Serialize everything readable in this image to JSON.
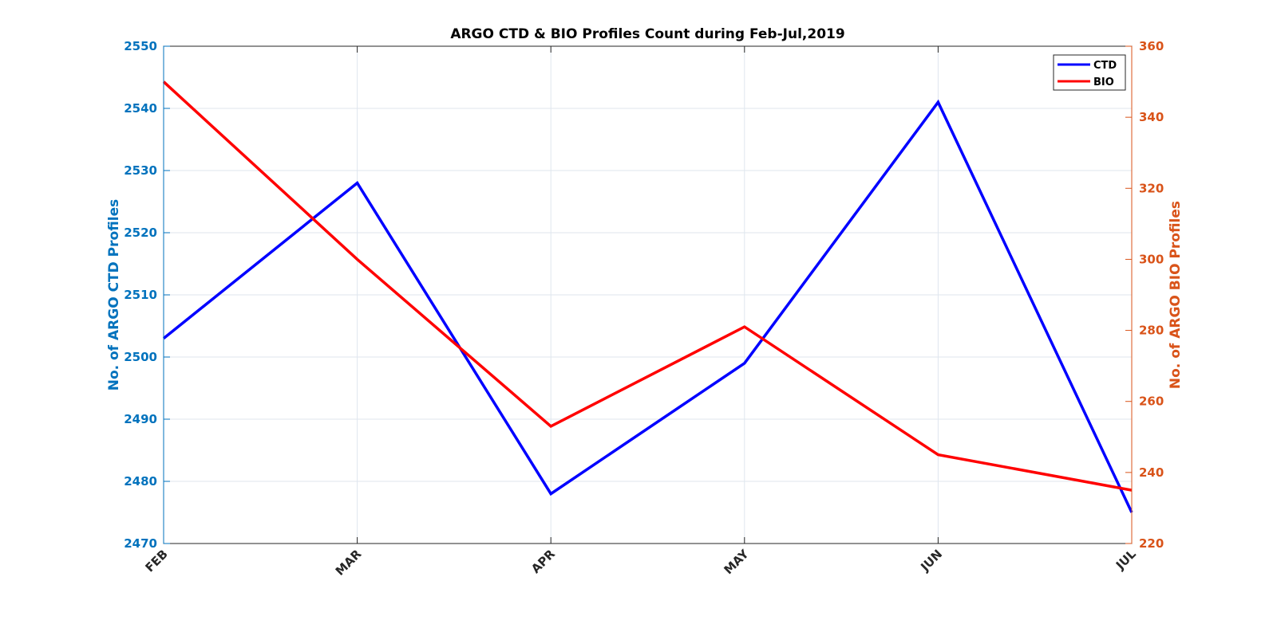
{
  "chart_data": {
    "type": "line",
    "title": "ARGO CTD & BIO Profiles Count during Feb-Jul,2019",
    "categories": [
      "FEB",
      "MAR",
      "APR",
      "MAY",
      "JUN",
      "JUL"
    ],
    "y_left": {
      "label": "No. of ARGO CTD Profiles",
      "range": [
        2470,
        2550
      ],
      "ticks": [
        "2470",
        "2480",
        "2490",
        "2500",
        "2510",
        "2520",
        "2530",
        "2540",
        "2550"
      ],
      "color": "#0072BD"
    },
    "y_right": {
      "label": "No. of ARGO BIO Profiles",
      "range": [
        220,
        360
      ],
      "ticks": [
        "220",
        "240",
        "260",
        "280",
        "300",
        "320",
        "340",
        "360"
      ],
      "color": "#D95319"
    },
    "series": [
      {
        "name": "CTD",
        "axis": "left",
        "color": "#0000FF",
        "values": [
          2503,
          2528,
          2478,
          2499,
          2541,
          2475
        ]
      },
      {
        "name": "BIO",
        "axis": "right",
        "color": "#FF0000",
        "values": [
          350,
          300,
          253,
          281,
          245,
          235
        ]
      }
    ],
    "grid": true,
    "legend": "top-right"
  }
}
